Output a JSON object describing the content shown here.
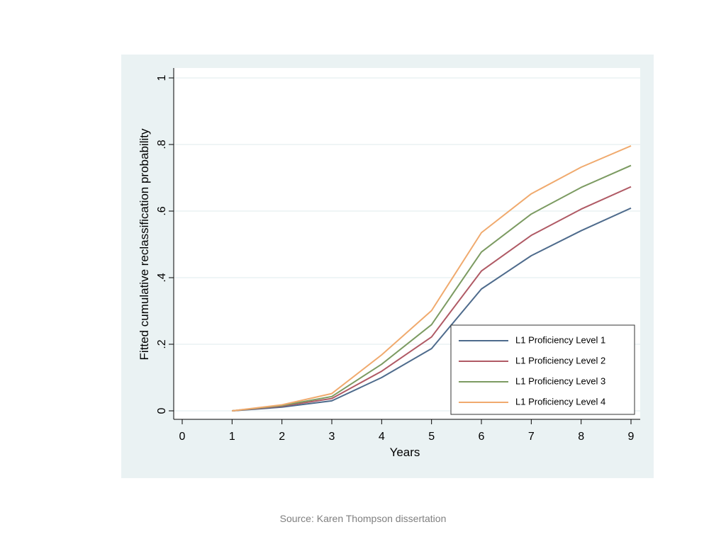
{
  "chart_data": {
    "type": "line",
    "xlabel": "Years",
    "ylabel": "Fitted cumulative reclassification probability",
    "xlim": [
      0,
      9
    ],
    "ylim": [
      0,
      1
    ],
    "x_ticks": [
      0,
      1,
      2,
      3,
      4,
      5,
      6,
      7,
      8,
      9
    ],
    "y_ticks": [
      {
        "value": 0,
        "label": "0"
      },
      {
        "value": 0.2,
        "label": ".2"
      },
      {
        "value": 0.4,
        "label": ".4"
      },
      {
        "value": 0.6,
        "label": ".6"
      },
      {
        "value": 0.8,
        "label": ".8"
      },
      {
        "value": 1,
        "label": "1"
      }
    ],
    "grid": true,
    "legend_position": "bottom-right",
    "x": [
      1,
      2,
      3,
      4,
      5,
      6,
      7,
      8,
      9
    ],
    "series": [
      {
        "name": "L1 Proficiency Level 1",
        "color": "#4e6b8c",
        "values": [
          0,
          0.011,
          0.03,
          0.1,
          0.187,
          0.366,
          0.466,
          0.541,
          0.609
        ]
      },
      {
        "name": "L1 Proficiency Level 2",
        "color": "#b05a65",
        "values": [
          0,
          0.014,
          0.037,
          0.119,
          0.222,
          0.42,
          0.527,
          0.606,
          0.673
        ]
      },
      {
        "name": "L1 Proficiency Level 3",
        "color": "#7c9b62",
        "values": [
          0,
          0.016,
          0.043,
          0.14,
          0.259,
          0.477,
          0.591,
          0.671,
          0.737
        ]
      },
      {
        "name": "L1 Proficiency Level 4",
        "color": "#f0aa6e",
        "values": [
          0,
          0.018,
          0.052,
          0.168,
          0.301,
          0.535,
          0.652,
          0.732,
          0.796
        ]
      }
    ]
  },
  "source": "Source:  Karen Thompson dissertation"
}
